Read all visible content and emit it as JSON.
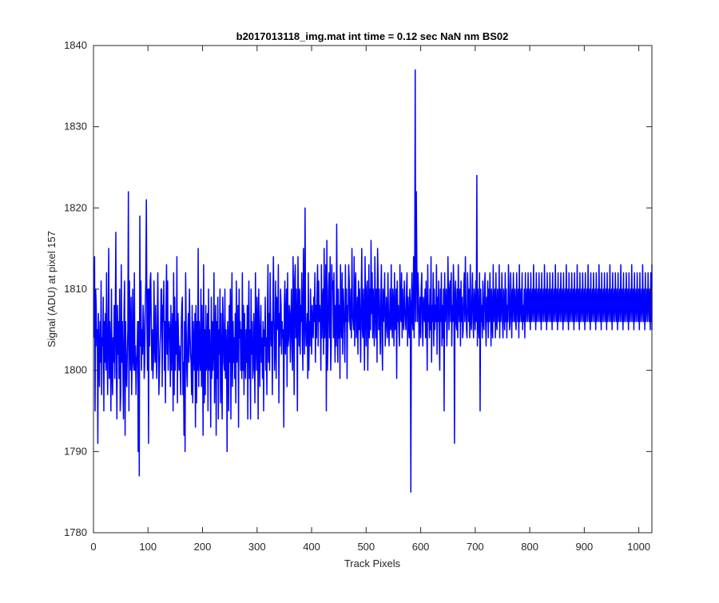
{
  "chart_data": {
    "type": "line",
    "title": "b2017013118_img.mat int time = 0.12 sec  NaN nm BS02",
    "xlabel": "Track Pixels",
    "ylabel": "Signal (ADU) at pixel 157",
    "xlim": [
      0,
      1024
    ],
    "ylim": [
      1780,
      1840
    ],
    "xticks": [
      0,
      100,
      200,
      300,
      400,
      500,
      600,
      700,
      800,
      900,
      1000
    ],
    "xtick_labels": [
      "0",
      "100",
      "200",
      "300",
      "400",
      "500",
      "600",
      "700",
      "800",
      "900",
      "1000"
    ],
    "yticks": [
      1780,
      1790,
      1800,
      1810,
      1820,
      1830,
      1840
    ],
    "ytick_labels": [
      "1780",
      "1790",
      "1800",
      "1810",
      "1820",
      "1830",
      "1840"
    ],
    "grid": false,
    "series": [
      {
        "color": "#0000ff",
        "x_start": 1,
        "x_step": 1,
        "values": [
          1804,
          1814,
          1795,
          1810,
          1808,
          1803,
          1805,
          1791,
          1807,
          1802,
          1798,
          1806,
          1801,
          1811,
          1797,
          1804,
          1803,
          1809,
          1795,
          1806,
          1801,
          1807,
          1800,
          1812,
          1803,
          1797,
          1805,
          1815,
          1799,
          1806,
          1802,
          1795,
          1810,
          1800,
          1797,
          1804,
          1801,
          1808,
          1799,
          1806,
          1817,
          1800,
          1794,
          1808,
          1802,
          1806,
          1799,
          1810,
          1795,
          1797,
          1813,
          1801,
          1806,
          1800,
          1794,
          1807,
          1811,
          1792,
          1806,
          1800,
          1798,
          1802,
          1805,
          1822,
          1795,
          1811,
          1804,
          1800,
          1809,
          1797,
          1802,
          1810,
          1801,
          1800,
          1812,
          1800,
          1803,
          1797,
          1801,
          1802,
          1806,
          1790,
          1806,
          1787,
          1819,
          1803,
          1811,
          1800,
          1805,
          1802,
          1808,
          1806,
          1799,
          1801,
          1808,
          1811,
          1821,
          1806,
          1800,
          1810,
          1791,
          1810,
          1803,
          1811,
          1812,
          1806,
          1800,
          1805,
          1799,
          1801,
          1811,
          1803,
          1801,
          1808,
          1802,
          1799,
          1806,
          1812,
          1804,
          1797,
          1800,
          1803,
          1805,
          1810,
          1810,
          1798,
          1808,
          1806,
          1811,
          1800,
          1806,
          1796,
          1808,
          1813,
          1802,
          1811,
          1800,
          1805,
          1806,
          1804,
          1798,
          1808,
          1800,
          1804,
          1807,
          1795,
          1812,
          1797,
          1809,
          1800,
          1806,
          1802,
          1814,
          1796,
          1807,
          1804,
          1800,
          1803,
          1801,
          1797,
          1805,
          1808,
          1809,
          1797,
          1801,
          1792,
          1806,
          1790,
          1812,
          1806,
          1800,
          1798,
          1804,
          1807,
          1801,
          1810,
          1805,
          1802,
          1801,
          1797,
          1808,
          1796,
          1806,
          1803,
          1800,
          1807,
          1793,
          1808,
          1796,
          1806,
          1800,
          1815,
          1798,
          1806,
          1802,
          1800,
          1810,
          1798,
          1808,
          1803,
          1792,
          1813,
          1796,
          1805,
          1797,
          1808,
          1800,
          1801,
          1807,
          1795,
          1810,
          1800,
          1805,
          1801,
          1793,
          1809,
          1799,
          1806,
          1800,
          1803,
          1812,
          1796,
          1804,
          1808,
          1792,
          1806,
          1799,
          1809,
          1794,
          1805,
          1802,
          1810,
          1796,
          1807,
          1800,
          1794,
          1809,
          1806,
          1801,
          1800,
          1810,
          1799,
          1805,
          1803,
          1790,
          1806,
          1804,
          1795,
          1808,
          1801,
          1810,
          1794,
          1806,
          1812,
          1798,
          1806,
          1801,
          1804,
          1799,
          1807,
          1796,
          1811,
          1801,
          1803,
          1808,
          1793,
          1810,
          1804,
          1806,
          1800,
          1805,
          1799,
          1812,
          1800,
          1808,
          1797,
          1807,
          1802,
          1799,
          1805,
          1801,
          1808,
          1794,
          1806,
          1811,
          1799,
          1805,
          1794,
          1810,
          1802,
          1806,
          1799,
          1800,
          1807,
          1803,
          1796,
          1812,
          1805,
          1800,
          1809,
          1806,
          1794,
          1810,
          1805,
          1798,
          1805,
          1808,
          1801,
          1804,
          1799,
          1806,
          1795,
          1805,
          1803,
          1809,
          1800,
          1804,
          1797,
          1807,
          1813,
          1801,
          1807,
          1800,
          1812,
          1805,
          1803,
          1806,
          1797,
          1808,
          1814,
          1806,
          1800,
          1803,
          1811,
          1799,
          1809,
          1805,
          1806,
          1813,
          1796,
          1807,
          1803,
          1810,
          1808,
          1802,
          1806,
          1804,
          1805,
          1793,
          1808,
          1811,
          1802,
          1806,
          1810,
          1798,
          1812,
          1803,
          1804,
          1808,
          1807,
          1801,
          1806,
          1810,
          1803,
          1800,
          1814,
          1808,
          1797,
          1811,
          1813,
          1804,
          1810,
          1806,
          1795,
          1814,
          1808,
          1803,
          1810,
          1802,
          1808,
          1806,
          1812,
          1804,
          1800,
          1815,
          1809,
          1802,
          1820,
          1806,
          1803,
          1805,
          1807,
          1799,
          1812,
          1800,
          1806,
          1803,
          1810,
          1806,
          1802,
          1808,
          1805,
          1804,
          1809,
          1806,
          1812,
          1801,
          1808,
          1804,
          1810,
          1813,
          1803,
          1811,
          1806,
          1808,
          1806,
          1800,
          1813,
          1804,
          1808,
          1810,
          1802,
          1815,
          1804,
          1806,
          1813,
          1795,
          1816,
          1800,
          1803,
          1810,
          1812,
          1804,
          1814,
          1800,
          1803,
          1813,
          1810,
          1811,
          1804,
          1812,
          1806,
          1801,
          1808,
          1803,
          1818,
          1806,
          1801,
          1810,
          1804,
          1808,
          1799,
          1813,
          1806,
          1804,
          1812,
          1802,
          1810,
          1808,
          1805,
          1801,
          1813,
          1806,
          1810,
          1799,
          1808,
          1806,
          1813,
          1811,
          1806,
          1805,
          1810,
          1804,
          1815,
          1807,
          1806,
          1805,
          1814,
          1803,
          1810,
          1812,
          1804,
          1806,
          1809,
          1802,
          1811,
          1805,
          1810,
          1806,
          1801,
          1809,
          1815,
          1805,
          1804,
          1810,
          1806,
          1800,
          1814,
          1808,
          1803,
          1810,
          1811,
          1800,
          1806,
          1813,
          1804,
          1810,
          1805,
          1816,
          1807,
          1812,
          1804,
          1810,
          1806,
          1803,
          1814,
          1808,
          1804,
          1810,
          1801,
          1815,
          1811,
          1805,
          1810,
          1806,
          1802,
          1809,
          1813,
          1804,
          1800,
          1810,
          1806,
          1808,
          1812,
          1803,
          1805,
          1809,
          1806,
          1804,
          1812,
          1807,
          1803,
          1806,
          1810,
          1805,
          1813,
          1806,
          1804,
          1810,
          1808,
          1803,
          1812,
          1805,
          1806,
          1810,
          1799,
          1811,
          1806,
          1808,
          1805,
          1803,
          1813,
          1807,
          1806,
          1812,
          1804,
          1810,
          1806,
          1805,
          1811,
          1808,
          1806,
          1805,
          1810,
          1812,
          1803,
          1809,
          1806,
          1804,
          1810,
          1808,
          1785,
          1808,
          1812,
          1806,
          1805,
          1814,
          1804,
          1810,
          1837,
          1806,
          1822,
          1813,
          1806,
          1812,
          1810,
          1803,
          1806,
          1809,
          1804,
          1810,
          1812,
          1806,
          1803,
          1809,
          1808,
          1806,
          1810,
          1804,
          1811,
          1806,
          1800,
          1813,
          1806,
          1808,
          1804,
          1810,
          1805,
          1814,
          1801,
          1808,
          1806,
          1812,
          1803,
          1810,
          1805,
          1808,
          1806,
          1813,
          1802,
          1809,
          1806,
          1811,
          1804,
          1800,
          1810,
          1806,
          1812,
          1803,
          1808,
          1804,
          1810,
          1795,
          1812,
          1806,
          1808,
          1810,
          1803,
          1806,
          1814,
          1809,
          1805,
          1810,
          1811,
          1806,
          1812,
          1803,
          1808,
          1806,
          1813,
          1810,
          1791,
          1809,
          1811,
          1806,
          1805,
          1810,
          1804,
          1813,
          1808,
          1806,
          1810,
          1803,
          1811,
          1806,
          1809,
          1804,
          1805,
          1810,
          1812,
          1806,
          1814,
          1808,
          1805,
          1804,
          1812,
          1809,
          1806,
          1810,
          1804,
          1813,
          1806,
          1805,
          1809,
          1812,
          1806,
          1804,
          1810,
          1808,
          1805,
          1811,
          1806,
          1824,
          1803,
          1810,
          1806,
          1804,
          1812,
          1795,
          1810,
          1806,
          1808,
          1804,
          1811,
          1806,
          1805,
          1810,
          1812,
          1806,
          1803,
          1809,
          1806,
          1811,
          1804,
          1810,
          1806,
          1812,
          1808,
          1803,
          1810,
          1806,
          1804,
          1813,
          1806,
          1808,
          1810,
          1804,
          1812,
          1806,
          1805,
          1810,
          1808,
          1806,
          1813,
          1804,
          1810,
          1806,
          1808,
          1812,
          1806,
          1804,
          1810,
          1808,
          1805,
          1812,
          1806,
          1810,
          1804,
          1808,
          1806,
          1813,
          1810,
          1805,
          1806,
          1812,
          1808,
          1804,
          1810,
          1806,
          1812,
          1808,
          1806,
          1810,
          1806,
          1805,
          1812,
          1808,
          1806,
          1810,
          1804,
          1813,
          1806,
          1808,
          1810,
          1806,
          1812,
          1805,
          1808,
          1806,
          1810,
          1804,
          1812,
          1806,
          1808,
          1810,
          1806,
          1812,
          1808,
          1806,
          1810,
          1805,
          1812,
          1806,
          1808,
          1810,
          1806,
          1813,
          1808,
          1806,
          1810,
          1805,
          1812,
          1806,
          1808,
          1810,
          1806,
          1812,
          1808,
          1806,
          1810,
          1805,
          1812,
          1806,
          1808,
          1810,
          1806,
          1813,
          1808,
          1806,
          1810,
          1805,
          1812,
          1806,
          1808,
          1810,
          1806,
          1812,
          1808,
          1806,
          1810,
          1805,
          1812,
          1806,
          1808,
          1810,
          1806,
          1813,
          1808,
          1806,
          1810,
          1805,
          1812,
          1806,
          1808,
          1810,
          1806,
          1812,
          1808,
          1806,
          1810,
          1805,
          1812,
          1806,
          1808,
          1810,
          1806,
          1813,
          1808,
          1806,
          1810,
          1805,
          1812,
          1806,
          1808,
          1810,
          1806,
          1812,
          1808,
          1806,
          1810,
          1805,
          1812,
          1806,
          1808,
          1810,
          1806,
          1813,
          1808,
          1806,
          1810,
          1805,
          1812,
          1806,
          1808,
          1810,
          1806,
          1812,
          1808,
          1806,
          1810,
          1805,
          1812,
          1806,
          1808,
          1810,
          1806,
          1813,
          1808,
          1806,
          1810,
          1805,
          1812,
          1806,
          1808,
          1810,
          1806,
          1812,
          1808,
          1806,
          1810,
          1805,
          1812,
          1806,
          1808,
          1810,
          1806,
          1813,
          1808,
          1806,
          1810,
          1805,
          1812,
          1806,
          1808,
          1810,
          1806,
          1812,
          1808,
          1806,
          1810,
          1805,
          1812,
          1806,
          1808,
          1810,
          1806,
          1813,
          1808,
          1806,
          1810,
          1805,
          1812,
          1806,
          1808,
          1810,
          1806,
          1812,
          1808,
          1806,
          1810,
          1805,
          1812,
          1806,
          1808,
          1810,
          1806,
          1813,
          1808,
          1806,
          1810,
          1805,
          1812,
          1806,
          1808,
          1810,
          1806,
          1812,
          1808,
          1806,
          1810,
          1805,
          1812,
          1806,
          1808,
          1810,
          1806,
          1813,
          1808,
          1806,
          1810,
          1805,
          1812,
          1806,
          1808,
          1810,
          1806,
          1812,
          1808,
          1806,
          1810,
          1805,
          1812,
          1806,
          1808,
          1810,
          1806,
          1813,
          1808,
          1806,
          1810,
          1805,
          1812,
          1806,
          1808,
          1810,
          1806,
          1812,
          1808,
          1806,
          1810,
          1805,
          1812,
          1806,
          1808,
          1810,
          1806,
          1813,
          1808,
          1806,
          1810,
          1805,
          1812,
          1806,
          1808,
          1810,
          1806,
          1812,
          1808,
          1806,
          1810,
          1805,
          1812,
          1806,
          1808,
          1810,
          1806,
          1813,
          1808,
          1806,
          1810
        ]
      }
    ]
  }
}
